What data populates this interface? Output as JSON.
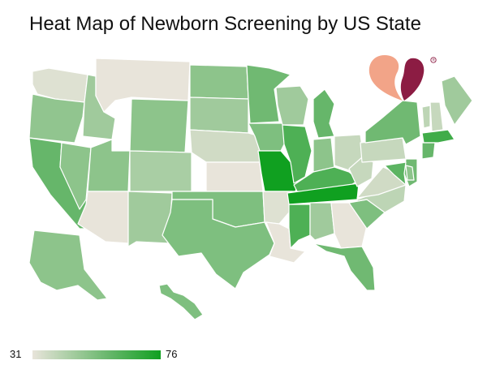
{
  "title": "Heat Map of Newborn Screening by US State",
  "legend": {
    "min_label": "31",
    "max_label": "76",
    "min_color": "#e8e4da",
    "mid_color": "#66b66a",
    "max_color": "#10a020"
  },
  "chart_data": {
    "type": "heatmap",
    "title": "Heat Map of Newborn Screening by US State",
    "scale": {
      "min": 31,
      "max": 76
    },
    "values": {
      "WA": 33,
      "OR": 49,
      "CA": 58,
      "NV": 50,
      "ID": 46,
      "MT": 31,
      "WY": 50,
      "UT": 50,
      "AZ": 31,
      "CO": 44,
      "NM": 46,
      "ND": 50,
      "SD": 46,
      "NE": 36,
      "KS": 31,
      "OK": 53,
      "TX": 53,
      "MN": 56,
      "IA": 53,
      "MO": 76,
      "AR": 33,
      "LA": 31,
      "WI": 46,
      "IL": 63,
      "MI": 58,
      "IN": 50,
      "OH": 38,
      "KY": 63,
      "TN": 76,
      "MS": 63,
      "AL": 46,
      "GA": 31,
      "FL": 56,
      "SC": 53,
      "NC": 40,
      "VA": 36,
      "WV": 38,
      "PA": 38,
      "NY": 56,
      "ME": 46,
      "VT": 40,
      "NH": 38,
      "MA": 66,
      "CT": 58,
      "NJ": 56,
      "MD": 60,
      "DE": 50,
      "AK": 50,
      "HI": 53
    }
  }
}
